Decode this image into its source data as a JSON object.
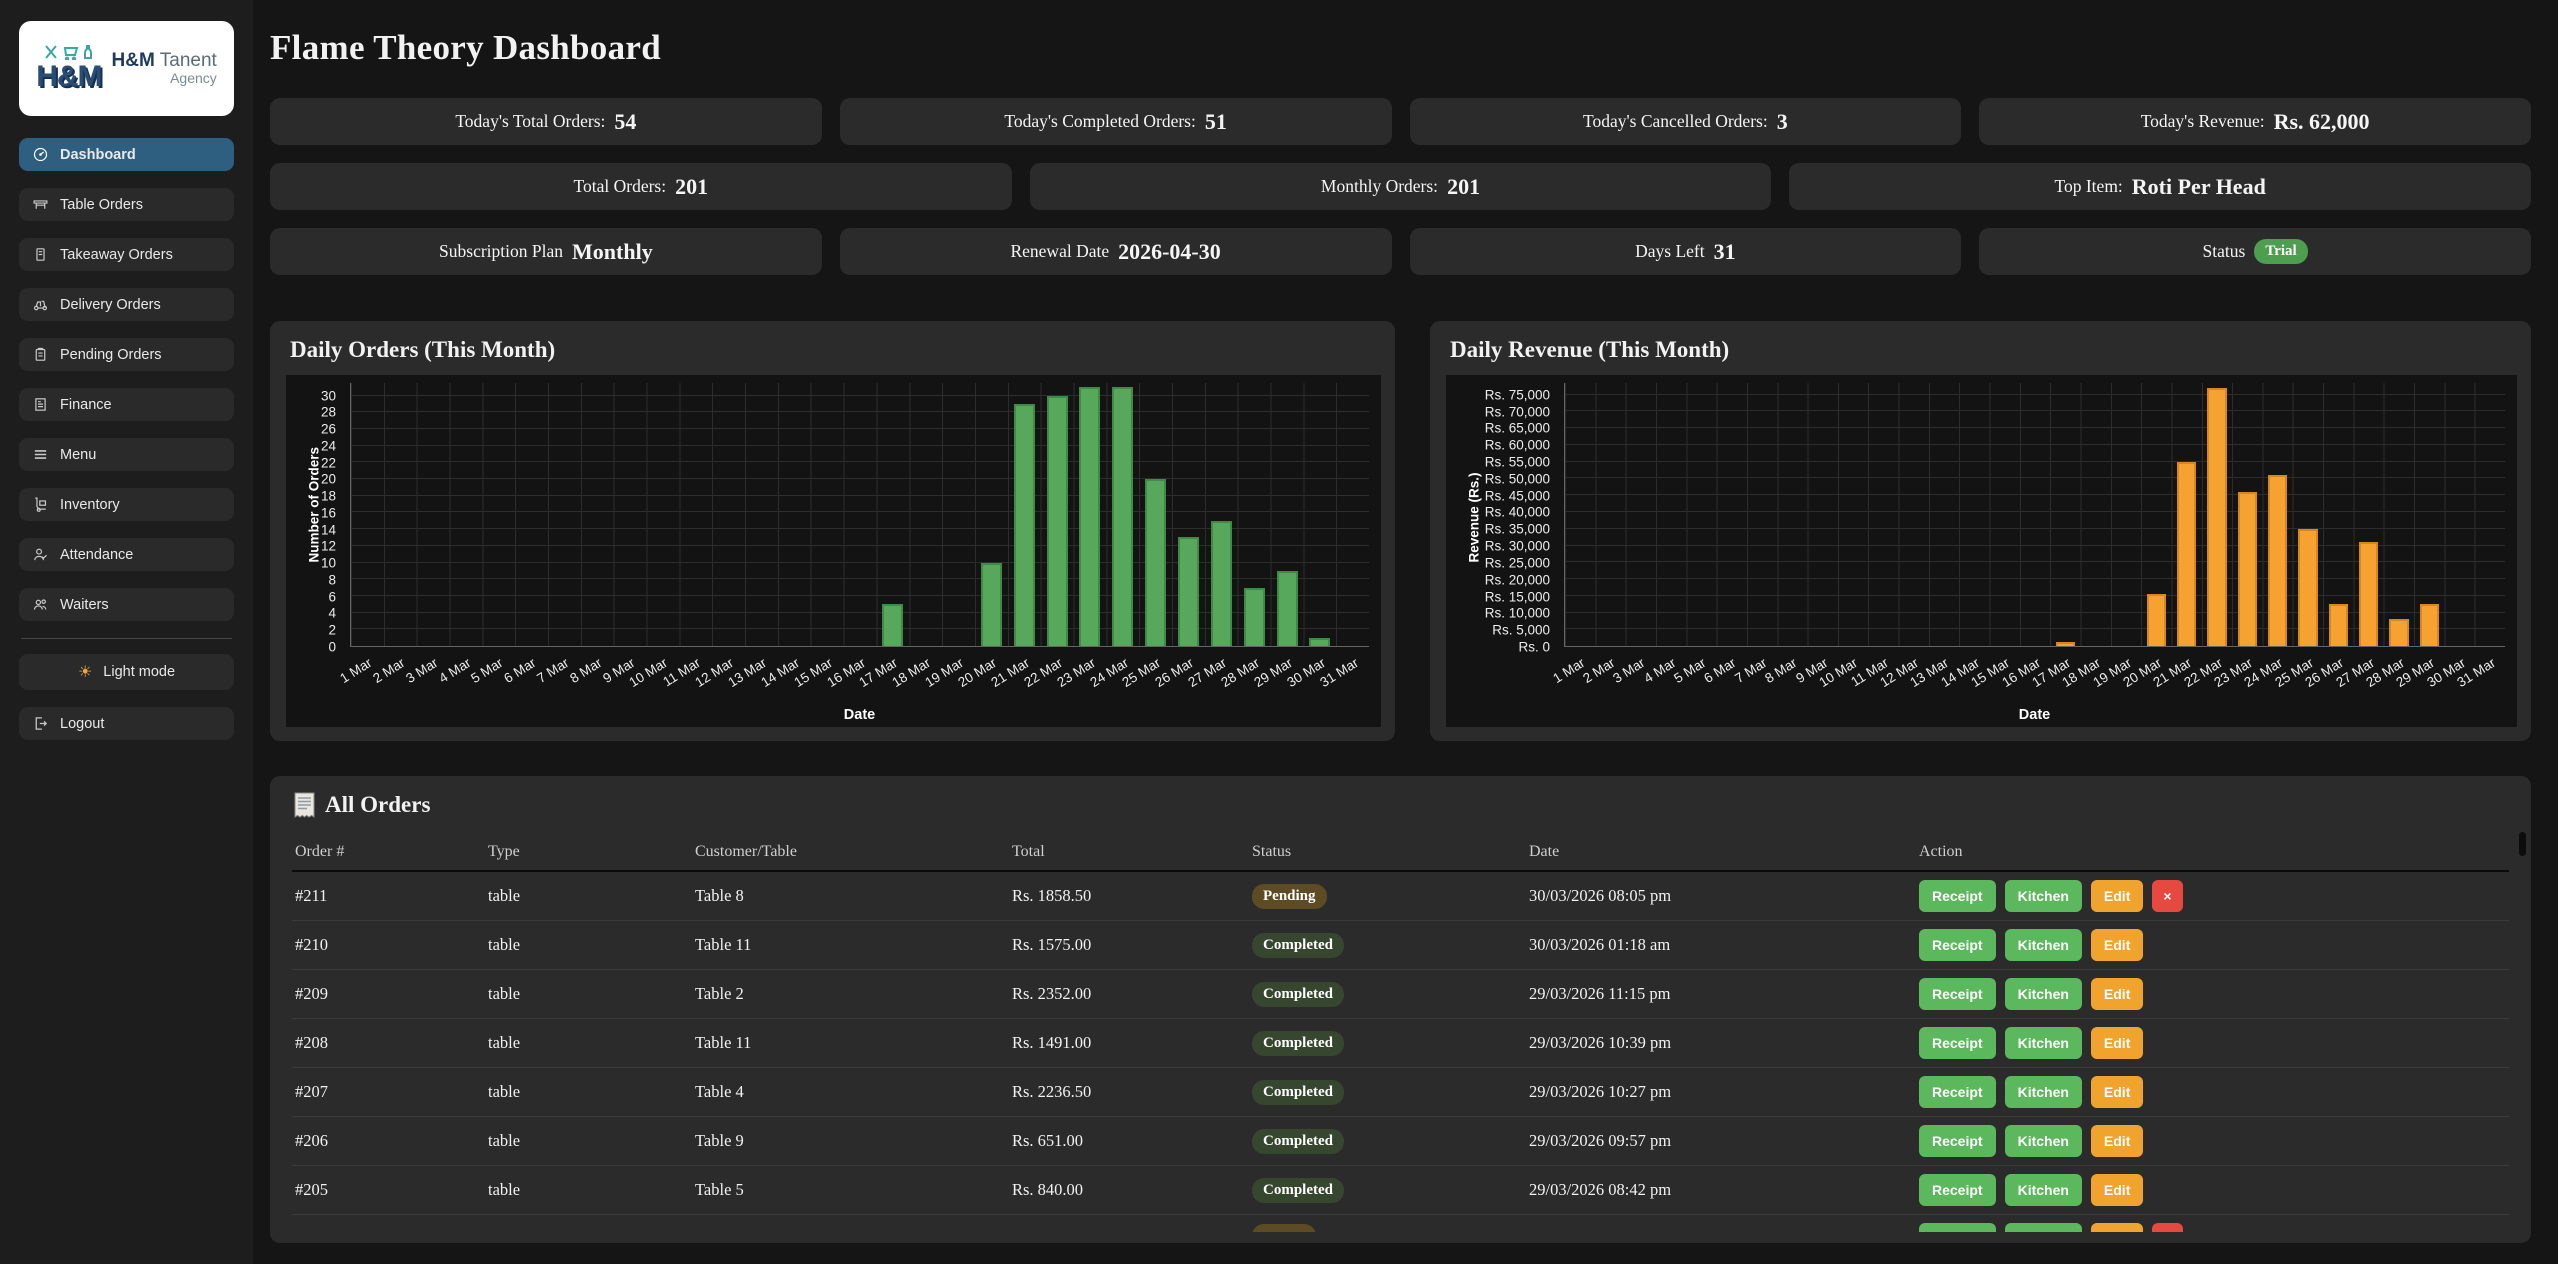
{
  "header": {
    "title": "Flame Theory Dashboard"
  },
  "sidebar": {
    "brand": {
      "name_bold": "H&M",
      "name_rest": "Tanent",
      "subtitle": "Agency"
    },
    "items": [
      {
        "label": "Dashboard",
        "icon": "gauge-icon",
        "active": true
      },
      {
        "label": "Table Orders",
        "icon": "table-icon",
        "active": false
      },
      {
        "label": "Takeaway Orders",
        "icon": "notebook-icon",
        "active": false
      },
      {
        "label": "Delivery Orders",
        "icon": "scooter-icon",
        "active": false
      },
      {
        "label": "Pending Orders",
        "icon": "clipboard-icon",
        "active": false
      },
      {
        "label": "Finance",
        "icon": "invoice-icon",
        "active": false
      },
      {
        "label": "Menu",
        "icon": "hamburger-icon",
        "active": false
      },
      {
        "label": "Inventory",
        "icon": "handtruck-icon",
        "active": false
      },
      {
        "label": "Attendance",
        "icon": "person-check-icon",
        "active": false
      },
      {
        "label": "Waiters",
        "icon": "people-icon",
        "active": false
      }
    ],
    "light_mode": {
      "label": "Light mode",
      "icon": "sun-icon"
    },
    "logout": {
      "label": "Logout",
      "icon": "logout-icon"
    }
  },
  "stats": {
    "row1": [
      {
        "label": "Today's Total Orders:",
        "value": "54"
      },
      {
        "label": "Today's Completed Orders:",
        "value": "51"
      },
      {
        "label": "Today's Cancelled Orders:",
        "value": "3"
      },
      {
        "label": "Today's Revenue:",
        "value": "Rs. 62,000"
      }
    ],
    "row2": [
      {
        "label": "Total Orders:",
        "value": "201"
      },
      {
        "label": "Monthly Orders:",
        "value": "201"
      },
      {
        "label": "Top Item:",
        "value": "Roti Per Head"
      }
    ],
    "row3": [
      {
        "label": "Subscription Plan",
        "value": "Monthly"
      },
      {
        "label": "Renewal Date",
        "value": "2026-04-30"
      },
      {
        "label": "Days Left",
        "value": "31"
      },
      {
        "label": "Status",
        "badge": "Trial"
      }
    ]
  },
  "colors": {
    "accent_blue": "#2e5e80",
    "green": "#5cb85c",
    "orange": "#f0a42e",
    "red": "#e5493f",
    "badge_trial": "#4d9e4f",
    "badge_pending": "#5d4b24",
    "badge_completed": "#36462f"
  },
  "chart_data": [
    {
      "type": "bar",
      "title": "Daily Orders (This Month)",
      "xlabel": "Date",
      "ylabel": "Number of Orders",
      "categories": [
        "1 Mar",
        "2 Mar",
        "3 Mar",
        "4 Mar",
        "5 Mar",
        "6 Mar",
        "7 Mar",
        "8 Mar",
        "9 Mar",
        "10 Mar",
        "11 Mar",
        "12 Mar",
        "13 Mar",
        "14 Mar",
        "15 Mar",
        "16 Mar",
        "17 Mar",
        "18 Mar",
        "19 Mar",
        "20 Mar",
        "21 Mar",
        "22 Mar",
        "23 Mar",
        "24 Mar",
        "25 Mar",
        "26 Mar",
        "27 Mar",
        "28 Mar",
        "29 Mar",
        "30 Mar",
        "31 Mar"
      ],
      "values": [
        0,
        0,
        0,
        0,
        0,
        0,
        0,
        0,
        0,
        0,
        0,
        0,
        0,
        0,
        0,
        0,
        5,
        0,
        0,
        10,
        29,
        30,
        31,
        31,
        20,
        13,
        15,
        7,
        9,
        1,
        0
      ],
      "bar_color": "#57a75c",
      "bar_border": "#3f8a46",
      "ylim": [
        0,
        31.5
      ],
      "ytick_step": 2,
      "ytick_max": 30,
      "tick_prefix": "",
      "grid": true,
      "legend": false
    },
    {
      "type": "bar",
      "title": "Daily Revenue (This Month)",
      "xlabel": "Date",
      "ylabel": "Revenue (Rs.)",
      "categories": [
        "1 Mar",
        "2 Mar",
        "3 Mar",
        "4 Mar",
        "5 Mar",
        "6 Mar",
        "7 Mar",
        "8 Mar",
        "9 Mar",
        "10 Mar",
        "11 Mar",
        "12 Mar",
        "13 Mar",
        "14 Mar",
        "15 Mar",
        "16 Mar",
        "17 Mar",
        "18 Mar",
        "19 Mar",
        "20 Mar",
        "21 Mar",
        "22 Mar",
        "23 Mar",
        "24 Mar",
        "25 Mar",
        "26 Mar",
        "27 Mar",
        "28 Mar",
        "29 Mar",
        "30 Mar",
        "31 Mar"
      ],
      "values": [
        0,
        0,
        0,
        0,
        0,
        0,
        0,
        0,
        0,
        0,
        0,
        0,
        0,
        0,
        0,
        0,
        1300,
        0,
        0,
        15500,
        55000,
        77000,
        46000,
        51000,
        35000,
        12500,
        31000,
        8000,
        12500,
        0,
        0
      ],
      "bar_color": "#f5a230",
      "bar_border": "#d8871c",
      "ylim": [
        0,
        78500
      ],
      "ytick_step": 5000,
      "ytick_max": 75000,
      "tick_prefix": "Rs. ",
      "grid": true,
      "legend": false
    }
  ],
  "orders": {
    "title": "All Orders",
    "icon": "receipt-icon",
    "columns": [
      "Order #",
      "Type",
      "Customer/Table",
      "Total",
      "Status",
      "Date",
      "Action"
    ],
    "action_labels": {
      "receipt": "Receipt",
      "kitchen": "Kitchen",
      "edit": "Edit",
      "delete": "×"
    },
    "rows": [
      {
        "order": "#211",
        "type": "table",
        "customer": "Table 8",
        "total": "Rs. 1858.50",
        "status": "Pending",
        "date": "30/03/2026 08:05 pm",
        "actions": [
          "receipt",
          "kitchen",
          "edit",
          "delete"
        ],
        "partial": false
      },
      {
        "order": "#210",
        "type": "table",
        "customer": "Table 11",
        "total": "Rs. 1575.00",
        "status": "Completed",
        "date": "30/03/2026 01:18 am",
        "actions": [
          "receipt",
          "kitchen",
          "edit"
        ],
        "partial": false
      },
      {
        "order": "#209",
        "type": "table",
        "customer": "Table 2",
        "total": "Rs. 2352.00",
        "status": "Completed",
        "date": "29/03/2026 11:15 pm",
        "actions": [
          "receipt",
          "kitchen",
          "edit"
        ],
        "partial": false
      },
      {
        "order": "#208",
        "type": "table",
        "customer": "Table 11",
        "total": "Rs. 1491.00",
        "status": "Completed",
        "date": "29/03/2026 10:39 pm",
        "actions": [
          "receipt",
          "kitchen",
          "edit"
        ],
        "partial": false
      },
      {
        "order": "#207",
        "type": "table",
        "customer": "Table 4",
        "total": "Rs. 2236.50",
        "status": "Completed",
        "date": "29/03/2026 10:27 pm",
        "actions": [
          "receipt",
          "kitchen",
          "edit"
        ],
        "partial": false
      },
      {
        "order": "#206",
        "type": "table",
        "customer": "Table 9",
        "total": "Rs. 651.00",
        "status": "Completed",
        "date": "29/03/2026 09:57 pm",
        "actions": [
          "receipt",
          "kitchen",
          "edit"
        ],
        "partial": false
      },
      {
        "order": "#205",
        "type": "table",
        "customer": "Table 5",
        "total": "Rs. 840.00",
        "status": "Completed",
        "date": "29/03/2026 08:42 pm",
        "actions": [
          "receipt",
          "kitchen",
          "edit"
        ],
        "partial": false
      },
      {
        "order": "",
        "type": "",
        "customer": "",
        "total": "",
        "status": "Pending",
        "date": "",
        "actions": [
          "receipt",
          "kitchen",
          "edit",
          "delete"
        ],
        "partial": true
      }
    ]
  }
}
